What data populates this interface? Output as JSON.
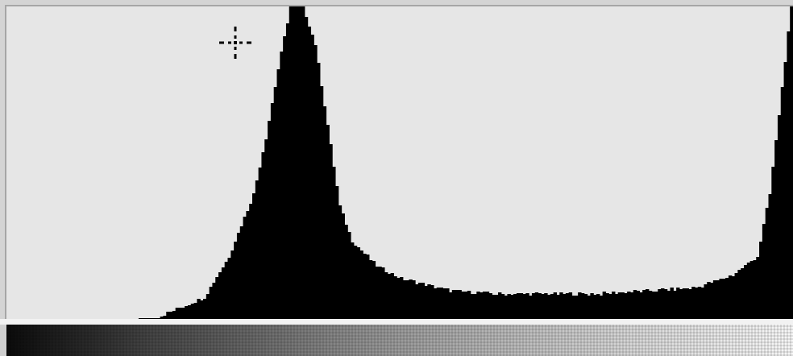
{
  "colors": {
    "plot_background": "#e6e6e6",
    "histogram_fill": "#000000",
    "frame": "#a6a6a6",
    "separator": "#f2f2f2"
  },
  "icons": {
    "cursor": "crosshair-icon"
  },
  "chart_data": {
    "type": "area",
    "bins": 256,
    "x": [
      0,
      16,
      32,
      48,
      64,
      72,
      80,
      84,
      88,
      92,
      96,
      100,
      104,
      108,
      112,
      116,
      120,
      124,
      128,
      144,
      160,
      176,
      192,
      208,
      224,
      236,
      244,
      248,
      252,
      255
    ],
    "values": [
      0,
      0,
      0,
      0.2,
      7,
      20,
      40,
      58,
      80,
      100,
      100,
      88,
      62,
      36,
      25,
      21,
      17,
      15,
      13,
      9,
      8,
      8,
      8,
      9,
      10,
      14,
      20,
      40,
      74,
      100
    ],
    "ylim": [
      0,
      100
    ],
    "xlim": [
      0,
      255
    ],
    "grid": false
  }
}
